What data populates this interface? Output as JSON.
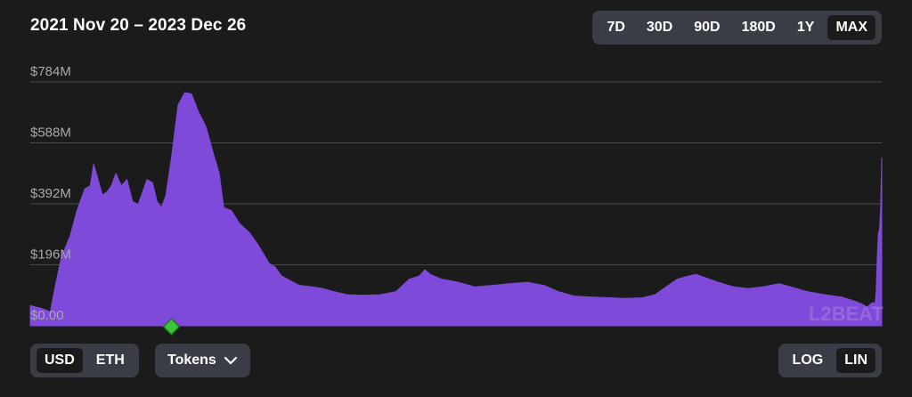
{
  "header": {
    "title": "2021 Nov 20 – 2023 Dec 26"
  },
  "range_buttons": [
    {
      "label": "7D",
      "active": false
    },
    {
      "label": "30D",
      "active": false
    },
    {
      "label": "90D",
      "active": false
    },
    {
      "label": "180D",
      "active": false
    },
    {
      "label": "1Y",
      "active": false
    },
    {
      "label": "MAX",
      "active": true
    }
  ],
  "currency_buttons": [
    {
      "label": "USD",
      "active": true
    },
    {
      "label": "ETH",
      "active": false
    }
  ],
  "tokens_button": {
    "label": "Tokens"
  },
  "scale_buttons": [
    {
      "label": "LOG",
      "active": false
    },
    {
      "label": "LIN",
      "active": true
    }
  ],
  "watermark": "L2BEAT",
  "colors": {
    "area_fill": "#7f4ad9",
    "background": "#1b1b1c",
    "gridline": "#4a4a4e",
    "milestone": "#3ec33b",
    "control_bg": "#3a3d45"
  },
  "icons": {
    "tokens_dropdown": "chevron-down-icon",
    "milestone": "milestone-diamond-icon"
  },
  "chart_data": {
    "type": "area",
    "ylabel": "",
    "xlabel": "",
    "yscale": "linear",
    "ylim": [
      0,
      784
    ],
    "yticks": [
      0,
      196,
      392,
      588,
      784
    ],
    "ytick_labels": [
      "$0.00",
      "$196M",
      "$392M",
      "$588M",
      "$784M"
    ],
    "grid": true,
    "x_start": "2021-11-20",
    "x_end": "2023-12-26",
    "series": [
      {
        "unit": "$M",
        "points": [
          [
            "2021-11-20",
            65
          ],
          [
            "2021-12-01",
            55
          ],
          [
            "2021-12-08",
            45
          ],
          [
            "2021-12-12",
            120
          ],
          [
            "2021-12-18",
            220
          ],
          [
            "2021-12-26",
            290
          ],
          [
            "2022-01-01",
            370
          ],
          [
            "2022-01-08",
            440
          ],
          [
            "2022-01-13",
            450
          ],
          [
            "2022-01-16",
            520
          ],
          [
            "2022-01-20",
            470
          ],
          [
            "2022-01-24",
            420
          ],
          [
            "2022-01-28",
            430
          ],
          [
            "2022-02-01",
            450
          ],
          [
            "2022-02-05",
            490
          ],
          [
            "2022-02-10",
            450
          ],
          [
            "2022-02-15",
            470
          ],
          [
            "2022-02-20",
            400
          ],
          [
            "2022-02-25",
            390
          ],
          [
            "2022-03-01",
            430
          ],
          [
            "2022-03-05",
            470
          ],
          [
            "2022-03-10",
            460
          ],
          [
            "2022-03-14",
            400
          ],
          [
            "2022-03-18",
            380
          ],
          [
            "2022-03-22",
            420
          ],
          [
            "2022-03-27",
            540
          ],
          [
            "2022-04-02",
            710
          ],
          [
            "2022-04-08",
            750
          ],
          [
            "2022-04-14",
            745
          ],
          [
            "2022-04-20",
            690
          ],
          [
            "2022-04-27",
            640
          ],
          [
            "2022-05-04",
            550
          ],
          [
            "2022-05-09",
            490
          ],
          [
            "2022-05-13",
            380
          ],
          [
            "2022-05-20",
            370
          ],
          [
            "2022-05-27",
            330
          ],
          [
            "2022-06-05",
            300
          ],
          [
            "2022-06-13",
            260
          ],
          [
            "2022-06-18",
            230
          ],
          [
            "2022-06-23",
            200
          ],
          [
            "2022-06-28",
            190
          ],
          [
            "2022-07-04",
            160
          ],
          [
            "2022-07-12",
            145
          ],
          [
            "2022-07-20",
            130
          ],
          [
            "2022-08-01",
            125
          ],
          [
            "2022-08-10",
            120
          ],
          [
            "2022-08-20",
            110
          ],
          [
            "2022-09-01",
            100
          ],
          [
            "2022-09-15",
            98
          ],
          [
            "2022-10-01",
            100
          ],
          [
            "2022-10-15",
            110
          ],
          [
            "2022-10-27",
            150
          ],
          [
            "2022-11-05",
            160
          ],
          [
            "2022-11-10",
            180
          ],
          [
            "2022-11-15",
            165
          ],
          [
            "2022-11-25",
            150
          ],
          [
            "2022-12-10",
            140
          ],
          [
            "2022-12-25",
            125
          ],
          [
            "2023-01-10",
            130
          ],
          [
            "2023-01-25",
            135
          ],
          [
            "2023-02-10",
            140
          ],
          [
            "2023-02-25",
            130
          ],
          [
            "2023-03-10",
            110
          ],
          [
            "2023-03-25",
            95
          ],
          [
            "2023-04-10",
            92
          ],
          [
            "2023-04-25",
            90
          ],
          [
            "2023-05-10",
            88
          ],
          [
            "2023-05-25",
            90
          ],
          [
            "2023-06-05",
            100
          ],
          [
            "2023-06-15",
            125
          ],
          [
            "2023-06-25",
            150
          ],
          [
            "2023-07-05",
            160
          ],
          [
            "2023-07-12",
            165
          ],
          [
            "2023-07-20",
            155
          ],
          [
            "2023-08-01",
            140
          ],
          [
            "2023-08-15",
            125
          ],
          [
            "2023-08-28",
            120
          ],
          [
            "2023-09-10",
            125
          ],
          [
            "2023-09-25",
            135
          ],
          [
            "2023-10-05",
            125
          ],
          [
            "2023-10-20",
            110
          ],
          [
            "2023-11-05",
            100
          ],
          [
            "2023-11-20",
            92
          ],
          [
            "2023-12-01",
            80
          ],
          [
            "2023-12-08",
            70
          ],
          [
            "2023-12-13",
            60
          ],
          [
            "2023-12-16",
            70
          ],
          [
            "2023-12-18",
            75
          ],
          [
            "2023-12-20",
            70
          ],
          [
            "2023-12-21",
            110
          ],
          [
            "2023-12-22",
            220
          ],
          [
            "2023-12-23",
            300
          ],
          [
            "2023-12-24",
            310
          ],
          [
            "2023-12-25",
            380
          ],
          [
            "2023-12-26",
            540
          ]
        ]
      }
    ],
    "annotations": [
      {
        "type": "milestone",
        "date": "2022-03-27"
      }
    ]
  }
}
